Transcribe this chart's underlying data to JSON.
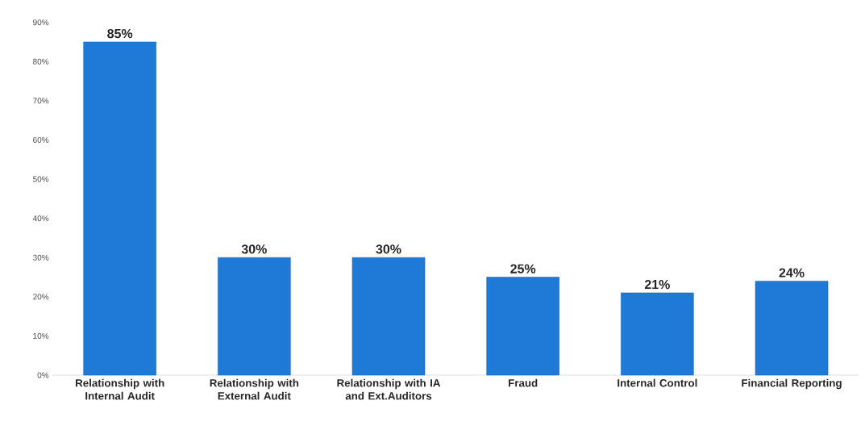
{
  "chart_data": {
    "type": "bar",
    "categories": [
      "Relationship with Internal Audit",
      "Relationship with External Audit",
      "Relationship with IA and Ext.Auditors",
      "Fraud",
      "Internal Control",
      "Financial Reporting"
    ],
    "values": [
      85,
      30,
      30,
      25,
      21,
      24
    ],
    "value_labels": [
      "85%",
      "30%",
      "30%",
      "25%",
      "21%",
      "24%"
    ],
    "color": "#1e7ad6",
    "ylim": [
      0,
      90
    ],
    "yticks": [
      {
        "value": 0,
        "label": "0%"
      },
      {
        "value": 10,
        "label": "10%"
      },
      {
        "value": 20,
        "label": "20%"
      },
      {
        "value": 30,
        "label": "30%"
      },
      {
        "value": 40,
        "label": "40%"
      },
      {
        "value": 50,
        "label": "50%"
      },
      {
        "value": 60,
        "label": "60%"
      },
      {
        "value": 70,
        "label": "70%"
      },
      {
        "value": 80,
        "label": "80%"
      },
      {
        "value": 90,
        "label": "90%"
      }
    ]
  }
}
